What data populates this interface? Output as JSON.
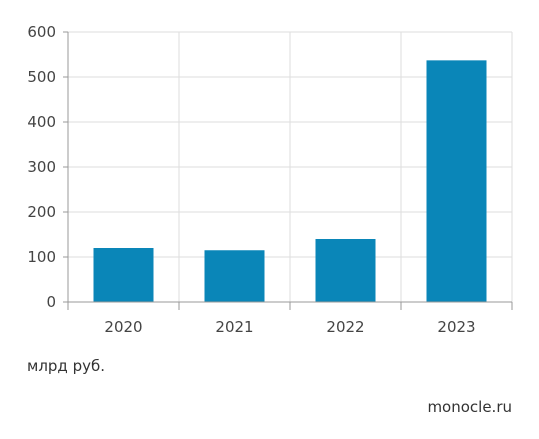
{
  "chart_data": {
    "type": "bar",
    "categories": [
      "2020",
      "2021",
      "2022",
      "2023"
    ],
    "values": [
      120,
      115,
      140,
      537
    ],
    "ylim": [
      0,
      600
    ],
    "yticks": [
      0,
      100,
      200,
      300,
      400,
      500,
      600
    ],
    "grid": true,
    "bar_color": "#0a86b8",
    "grid_color": "#dddddd",
    "axis_color": "#999999"
  },
  "unit": "млрд руб.",
  "source": "monocle.ru"
}
